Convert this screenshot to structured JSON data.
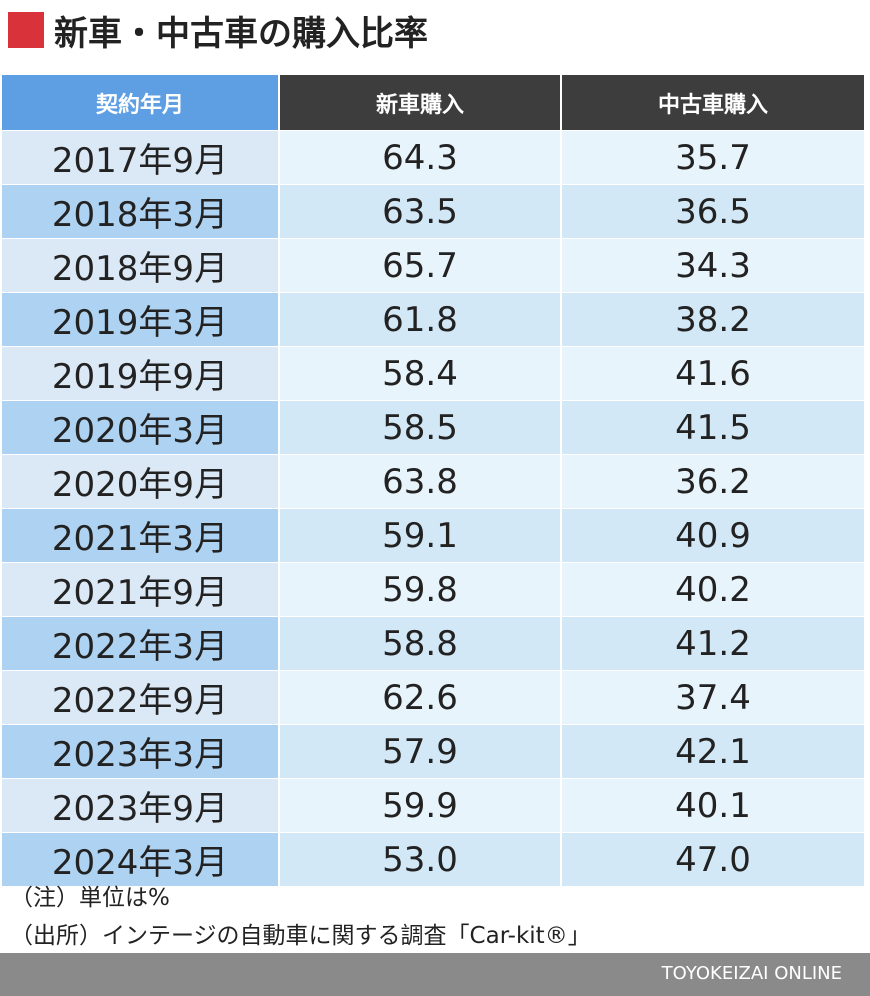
{
  "header": {
    "title": "新車・中古車の購入比率"
  },
  "table": {
    "columns": [
      "契約年月",
      "新車購入",
      "中古車購入"
    ],
    "rows": [
      [
        "2017年9月",
        "64.3",
        "35.7"
      ],
      [
        "2018年3月",
        "63.5",
        "36.5"
      ],
      [
        "2018年9月",
        "65.7",
        "34.3"
      ],
      [
        "2019年3月",
        "61.8",
        "38.2"
      ],
      [
        "2019年9月",
        "58.4",
        "41.6"
      ],
      [
        "2020年3月",
        "58.5",
        "41.5"
      ],
      [
        "2020年9月",
        "63.8",
        "36.2"
      ],
      [
        "2021年3月",
        "59.1",
        "40.9"
      ],
      [
        "2021年9月",
        "59.8",
        "40.2"
      ],
      [
        "2022年3月",
        "58.8",
        "41.2"
      ],
      [
        "2022年9月",
        "62.6",
        "37.4"
      ],
      [
        "2023年3月",
        "57.9",
        "42.1"
      ],
      [
        "2023年9月",
        "59.9",
        "40.1"
      ],
      [
        "2024年3月",
        "53.0",
        "47.0"
      ]
    ]
  },
  "notes": [
    "（注）単位は%",
    "（出所）インテージの自動車に関する調査「Car-kit®」"
  ],
  "footer": {
    "credit": "TOYOKEIZAI ONLINE"
  }
}
